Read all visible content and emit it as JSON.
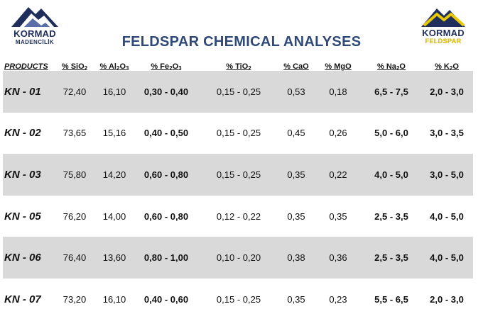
{
  "logo_left": {
    "brand": "KORMAD",
    "sub": "MADENCİLİK",
    "colors": {
      "navy": "#1f2e5a",
      "accent": "#5a6ea8"
    }
  },
  "logo_right": {
    "brand": "KORMAD",
    "sub": "FELDSPAR",
    "colors": {
      "navy": "#1f2e5a",
      "yellow": "#e8c800"
    }
  },
  "title": "FELDSPAR CHEMICAL ANALYSES",
  "columns": {
    "products": "PRODUCTS",
    "sio2": {
      "pre": "% SiO",
      "sub": "2",
      "post": ""
    },
    "al2o3": {
      "pre": "% Al",
      "sub1": "2",
      "mid": "O",
      "sub2": "3"
    },
    "fe2o3": {
      "pre": "% Fe",
      "sub1": "2",
      "mid": "O",
      "sub2": "3"
    },
    "tio2": {
      "pre": "% TiO",
      "sub": "2"
    },
    "cao": "% CaO",
    "mgo": "% MgO",
    "na2o": {
      "pre": "% Na",
      "sub": "2",
      "post": "O"
    },
    "k2o": {
      "pre": "% K",
      "sub": "2",
      "post": "O"
    }
  },
  "rows": [
    {
      "product": "KN - 01",
      "sio2": "72,40",
      "al2o3": "16,10",
      "fe2o3": "0,30 - 0,40",
      "tio2": "0,15 - 0,25",
      "cao": "0,53",
      "mgo": "0,18",
      "na2o": "6,5 - 7,5",
      "k2o": "2,0 - 3,0"
    },
    {
      "product": "KN - 02",
      "sio2": "73,65",
      "al2o3": "15,16",
      "fe2o3": "0,40 - 0,50",
      "tio2": "0,15 - 0,25",
      "cao": "0,45",
      "mgo": "0,26",
      "na2o": "5,0 - 6,0",
      "k2o": "3,0 - 3,5"
    },
    {
      "product": "KN - 03",
      "sio2": "75,80",
      "al2o3": "14,20",
      "fe2o3": "0,60 - 0,80",
      "tio2": "0,15 - 0,25",
      "cao": "0,35",
      "mgo": "0,22",
      "na2o": "4,0 - 5,0",
      "k2o": "3,0 - 5,0"
    },
    {
      "product": "KN - 05",
      "sio2": "76,20",
      "al2o3": "14,00",
      "fe2o3": "0,60 - 0,80",
      "tio2": "0,12 - 0,22",
      "cao": "0,35",
      "mgo": "0,35",
      "na2o": "2,5 - 3,5",
      "k2o": "4,0 - 5,0"
    },
    {
      "product": "KN - 06",
      "sio2": "76,40",
      "al2o3": "13,60",
      "fe2o3": "0,80 - 1,00",
      "tio2": "0,10 - 0,20",
      "cao": "0,38",
      "mgo": "0,36",
      "na2o": "2,5 - 3,5",
      "k2o": "4,0 - 5,0"
    },
    {
      "product": "KN - 07",
      "sio2": "73,20",
      "al2o3": "16,10",
      "fe2o3": "0,40 - 0,60",
      "tio2": "0,15 - 0,25",
      "cao": "0,35",
      "mgo": "0,23",
      "na2o": "5,5 - 6,5",
      "k2o": "2,0 - 3,0"
    }
  ],
  "colors": {
    "title": "#2f4a78",
    "row_shade": "#d9d9d9"
  }
}
